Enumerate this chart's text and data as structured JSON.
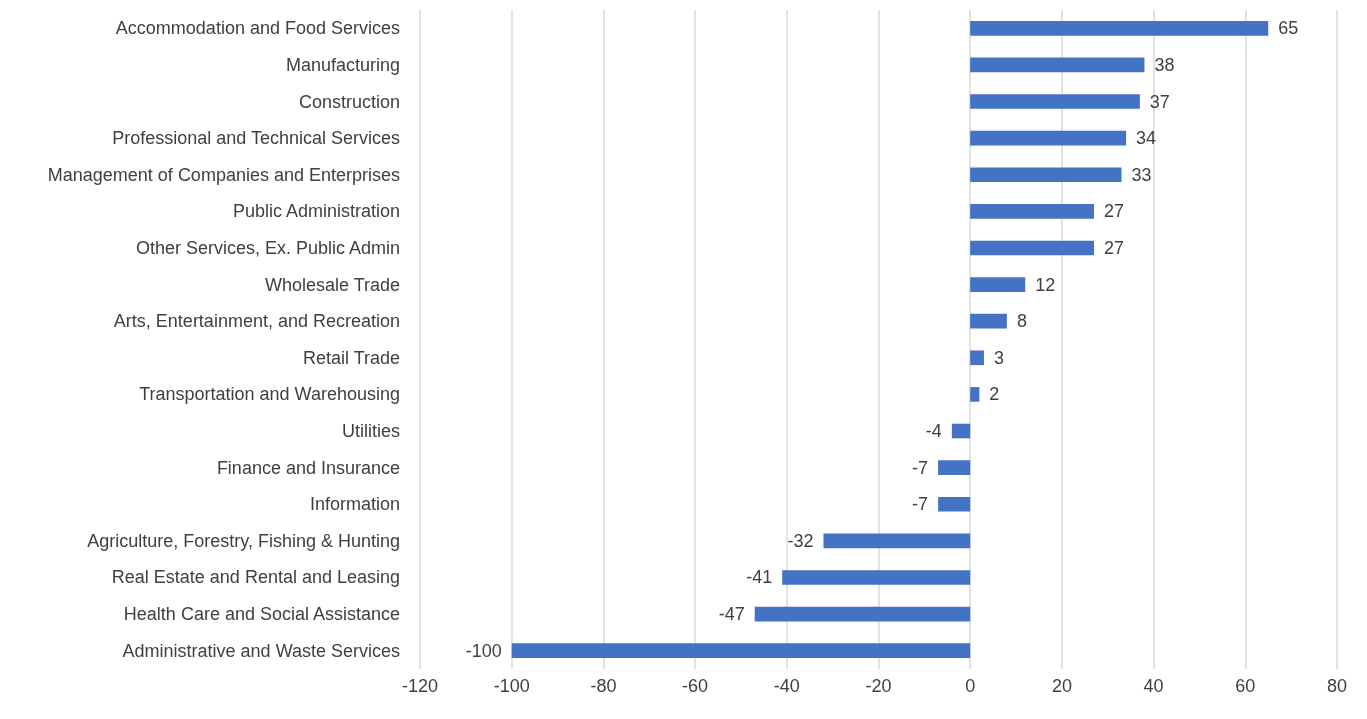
{
  "chart_data": {
    "type": "bar",
    "orientation": "horizontal",
    "categories": [
      "Accommodation and Food Services",
      "Manufacturing",
      "Construction",
      "Professional and Technical Services",
      "Management of Companies and Enterprises",
      "Public Administration",
      "Other Services, Ex. Public Admin",
      "Wholesale Trade",
      "Arts, Entertainment, and Recreation",
      "Retail Trade",
      "Transportation and Warehousing",
      "Utilities",
      "Finance and Insurance",
      "Information",
      "Agriculture, Forestry, Fishing & Hunting",
      "Real Estate and Rental and Leasing",
      "Health Care and Social Assistance",
      "Administrative and Waste Services"
    ],
    "values": [
      65,
      38,
      37,
      34,
      33,
      27,
      27,
      12,
      8,
      3,
      2,
      -4,
      -7,
      -7,
      -32,
      -41,
      -47,
      -100
    ],
    "color": "#4472c4",
    "xlim": [
      -120,
      80
    ],
    "xticks": [
      -120,
      -100,
      -80,
      -60,
      -40,
      -20,
      0,
      20,
      40,
      60,
      80
    ],
    "grid": "x",
    "data_labels": true
  }
}
